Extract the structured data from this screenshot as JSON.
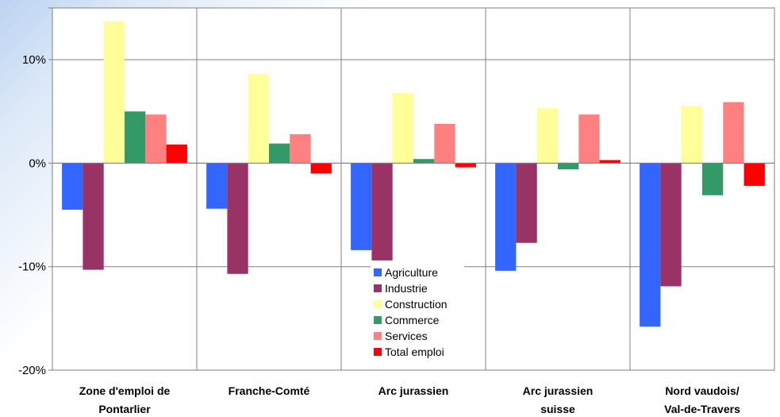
{
  "chart_data": {
    "type": "bar",
    "categories": [
      [
        "Zone d'emploi de",
        "Pontarlier"
      ],
      [
        "Franche-Comté"
      ],
      [
        "Arc jurassien"
      ],
      [
        "Arc jurassien",
        "suisse"
      ],
      [
        "Nord vaudois/",
        "Val-de-Travers"
      ]
    ],
    "series": [
      {
        "name": "Agriculture",
        "color": "#3366ff",
        "values": [
          -4.5,
          -4.4,
          -8.4,
          -10.4,
          -15.8
        ]
      },
      {
        "name": "Industrie",
        "color": "#993366",
        "values": [
          -10.3,
          -10.7,
          -9.4,
          -7.7,
          -11.9
        ]
      },
      {
        "name": "Construction",
        "color": "#ffff99",
        "values": [
          13.7,
          8.6,
          6.8,
          5.3,
          5.5
        ]
      },
      {
        "name": "Commerce",
        "color": "#339966",
        "values": [
          5.0,
          1.9,
          0.4,
          -0.6,
          -3.1
        ]
      },
      {
        "name": "Services",
        "color": "#ff8080",
        "values": [
          4.7,
          2.8,
          3.8,
          4.7,
          5.9
        ]
      },
      {
        "name": "Total emploi",
        "color": "#ff0000",
        "values": [
          1.8,
          -1.0,
          -0.4,
          0.3,
          -2.2
        ]
      }
    ],
    "y_ticks": [
      {
        "value": 10,
        "label": "10%"
      },
      {
        "value": 0,
        "label": "0%"
      },
      {
        "value": -10,
        "label": "-10%"
      },
      {
        "value": -20,
        "label": "-20%"
      }
    ],
    "ylim": [
      -20,
      15
    ],
    "grid": true,
    "legend": "center"
  }
}
